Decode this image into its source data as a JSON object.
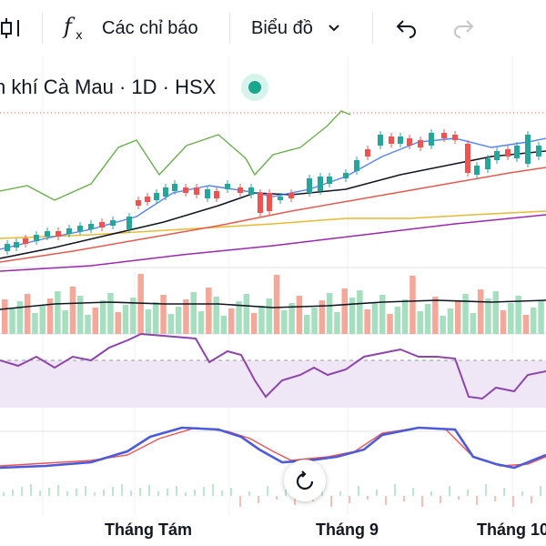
{
  "toolbar": {
    "indicators_label": "Các chỉ báo",
    "chart_type_label": "Biểu đồ"
  },
  "symbol": {
    "title": "n khí Cà Mau · 1D · HSX"
  },
  "time_axis": {
    "labels": [
      "Tháng Tám",
      "Tháng 9",
      "Tháng 10"
    ]
  },
  "colors": {
    "up": "#26a69a",
    "down": "#ef5350",
    "up_light": "#a5dfbf",
    "down_light": "#f4a89a",
    "rsi_band": "#efe7f6",
    "rsi_line": "#8e44ad",
    "macd": "#4b5bdb",
    "signal": "#ef5350"
  }
}
